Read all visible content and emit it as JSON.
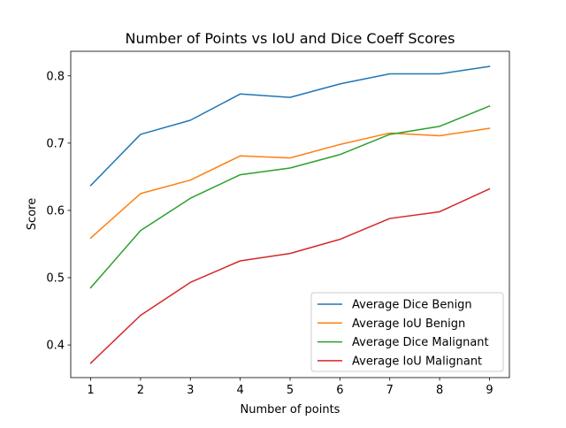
{
  "chart_data": {
    "type": "line",
    "title": "Number of Points vs IoU and Dice Coeff Scores",
    "xlabel": "Number of points",
    "ylabel": "Score",
    "x": [
      1,
      2,
      3,
      4,
      5,
      6,
      7,
      8,
      9
    ],
    "xlim": [
      0.6,
      9.4
    ],
    "ylim": [
      0.3515,
      0.8365
    ],
    "xticks": [
      "1",
      "2",
      "3",
      "4",
      "5",
      "6",
      "7",
      "8",
      "9"
    ],
    "yticks": [
      "0.4",
      "0.5",
      "0.6",
      "0.7",
      "0.8"
    ],
    "grid": false,
    "legend_position": "lower-right",
    "series": [
      {
        "name": "Average Dice Benign",
        "color": "#1f77b4",
        "values": [
          0.637,
          0.713,
          0.734,
          0.773,
          0.768,
          0.788,
          0.803,
          0.803,
          0.814
        ]
      },
      {
        "name": "Average IoU Benign",
        "color": "#ff7f0e",
        "values": [
          0.559,
          0.625,
          0.645,
          0.681,
          0.678,
          0.698,
          0.715,
          0.711,
          0.722
        ]
      },
      {
        "name": "Average Dice Malignant",
        "color": "#2ca02c",
        "values": [
          0.485,
          0.57,
          0.618,
          0.653,
          0.663,
          0.683,
          0.713,
          0.725,
          0.755
        ]
      },
      {
        "name": "Average IoU Malignant",
        "color": "#d62728",
        "values": [
          0.373,
          0.444,
          0.493,
          0.525,
          0.536,
          0.557,
          0.588,
          0.598,
          0.632
        ]
      }
    ]
  }
}
